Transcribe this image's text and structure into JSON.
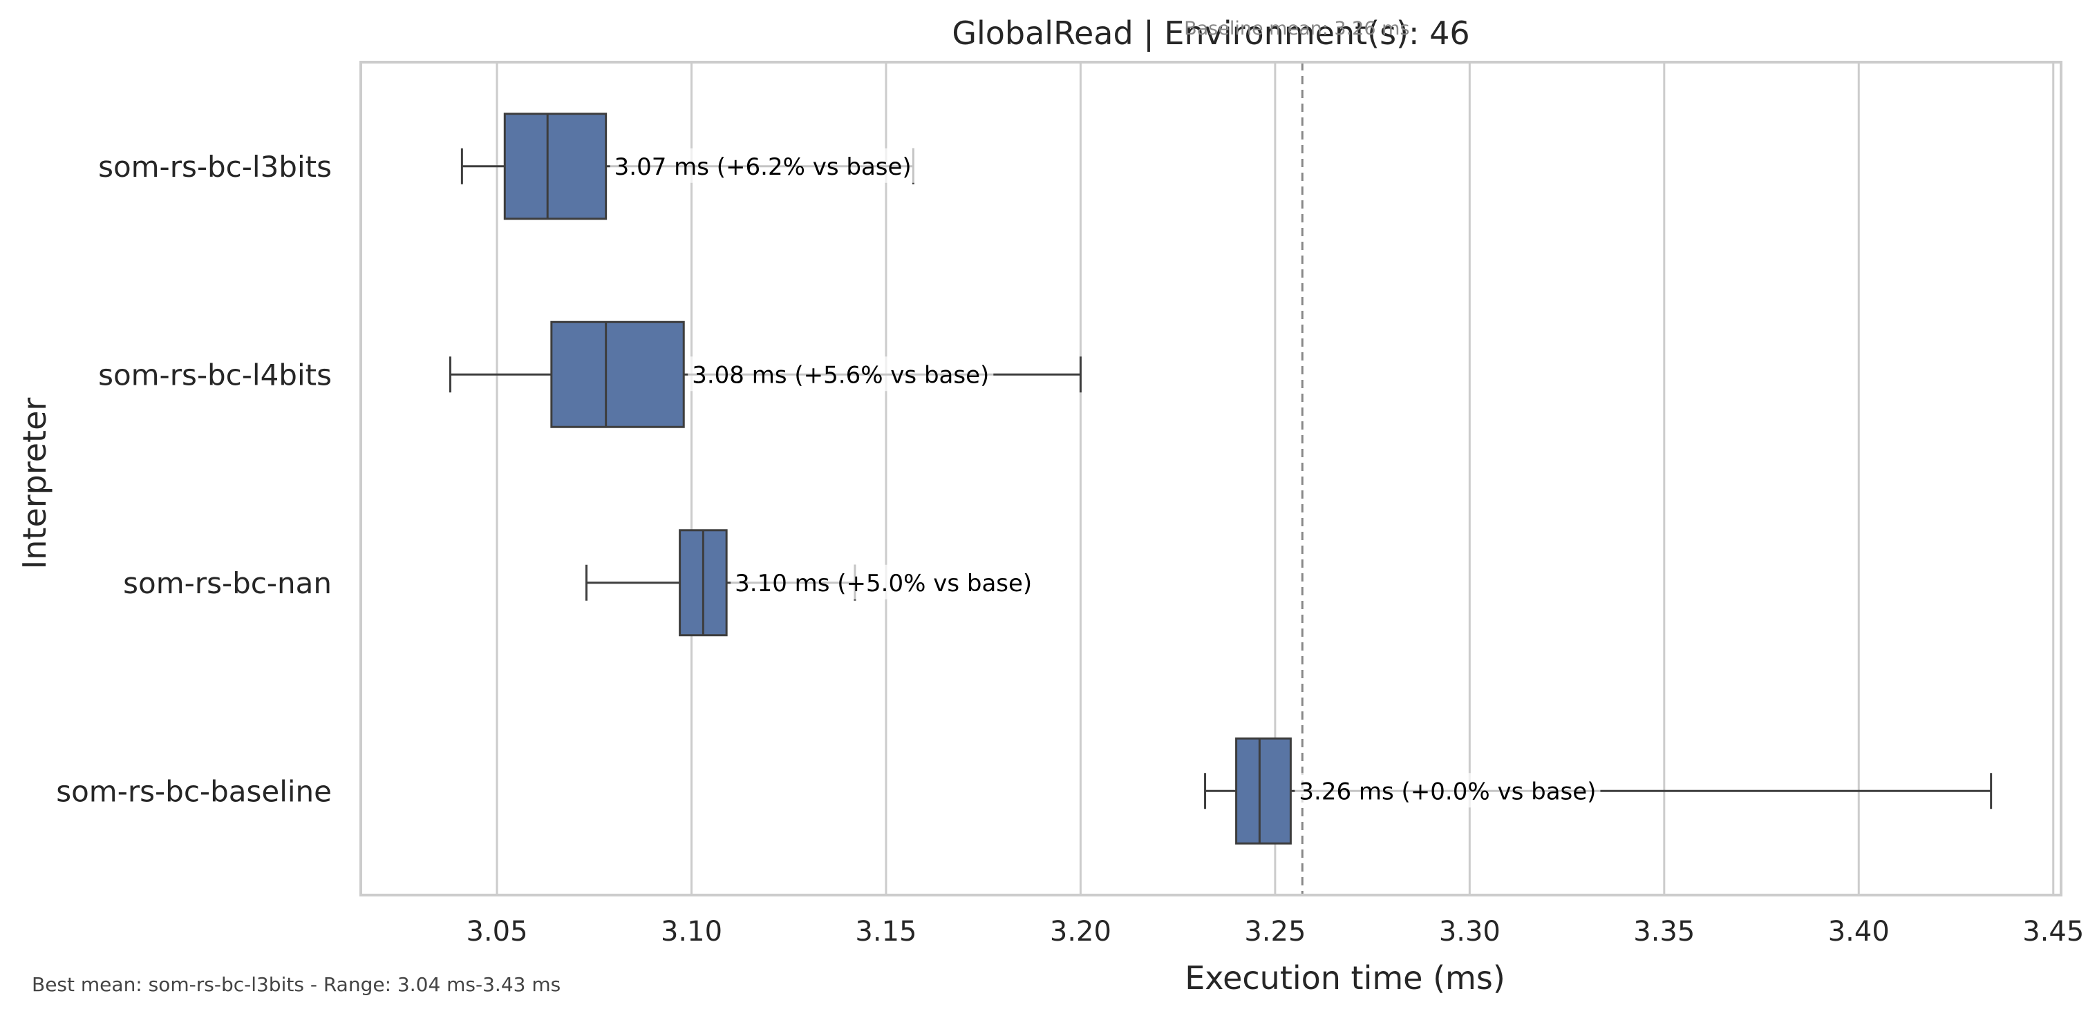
{
  "chart_data": {
    "type": "boxplot",
    "orientation": "horizontal",
    "title": "GlobalRead | Environment(s): 46",
    "baseline_note": "Baseline mean: 3.26 ms",
    "baseline_value": 3.257,
    "xlabel": "Execution time (ms)",
    "ylabel": "Interpreter",
    "xlim": [
      3.015,
      3.452
    ],
    "xticks": [
      3.05,
      3.1,
      3.15,
      3.2,
      3.25,
      3.3,
      3.35,
      3.4,
      3.45
    ],
    "xtick_labels": [
      "3.05",
      "3.10",
      "3.15",
      "3.20",
      "3.25",
      "3.30",
      "3.35",
      "3.40",
      "3.45"
    ],
    "grid": "vertical",
    "box_color": "#5975a4",
    "box_edge_color": "#3d3d3d",
    "categories": [
      "som-rs-bc-l3bits",
      "som-rs-bc-l4bits",
      "som-rs-bc-nan",
      "som-rs-bc-baseline"
    ],
    "boxes": [
      {
        "name": "som-rs-bc-l3bits",
        "whisker_low": 3.041,
        "q1": 3.052,
        "median": 3.063,
        "q3": 3.078,
        "whisker_high": 3.157,
        "annotation": "3.07 ms  (+6.2% vs base)"
      },
      {
        "name": "som-rs-bc-l4bits",
        "whisker_low": 3.038,
        "q1": 3.064,
        "median": 3.078,
        "q3": 3.098,
        "whisker_high": 3.2,
        "annotation": "3.08 ms  (+5.6% vs base)"
      },
      {
        "name": "som-rs-bc-nan",
        "whisker_low": 3.073,
        "q1": 3.097,
        "median": 3.103,
        "q3": 3.109,
        "whisker_high": 3.142,
        "annotation": "3.10 ms  (+5.0% vs base)"
      },
      {
        "name": "som-rs-bc-baseline",
        "whisker_low": 3.232,
        "q1": 3.24,
        "median": 3.246,
        "q3": 3.254,
        "whisker_high": 3.434,
        "annotation": "3.26 ms  (+0.0% vs base)"
      }
    ],
    "footer": "Best mean: som-rs-bc-l3bits - Range: 3.04 ms-3.43 ms"
  }
}
